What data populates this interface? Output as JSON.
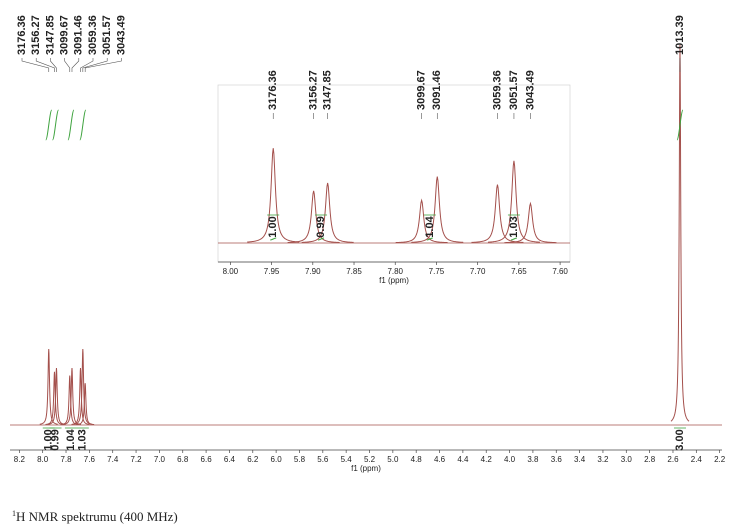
{
  "chart_data": [
    {
      "type": "nmr",
      "xlabel": "f1 (ppm)",
      "color": "#a4504c",
      "integral_color": "#3fa33f",
      "xlim": [
        8.28,
        2.18
      ],
      "xticks": [
        8.2,
        {
          "value": 8,
          "label": "8.0"
        },
        7.8,
        7.6,
        7.4,
        7.2,
        {
          "value": 7,
          "label": "7.0"
        },
        6.8,
        6.6,
        6.4,
        6.2,
        {
          "value": 6,
          "label": "6.0"
        },
        5.8,
        5.6,
        5.4,
        5.2,
        {
          "value": 5,
          "label": "5.0"
        },
        4.8,
        4.6,
        4.4,
        4.2,
        {
          "value": 4,
          "label": "4.0"
        },
        3.8,
        3.6,
        3.4,
        3.2,
        {
          "value": 3,
          "label": "3.0"
        },
        2.8,
        2.6,
        2.4,
        2.2
      ],
      "ylim": [
        0,
        100
      ],
      "x": [
        7.948,
        7.899,
        7.882,
        7.768,
        7.749,
        7.676,
        7.656,
        7.636,
        2.54
      ],
      "values": [
        20,
        14,
        15,
        13,
        15,
        15,
        20,
        11,
        100
      ],
      "peak_labels": [
        3176.36,
        3156.27,
        3147.85,
        3099.67,
        3091.46,
        3059.36,
        3051.57,
        3043.49,
        1013.39
      ],
      "integrals": {
        "x": [
          7.948,
          7.89,
          7.758,
          7.656,
          2.54
        ],
        "values": [
          1,
          0.99,
          1.04,
          1.03,
          3
        ],
        "value_labels": [
          "1.00",
          "0.99",
          "1.04",
          "1.03",
          "3.00"
        ]
      }
    },
    {
      "type": "nmr",
      "xlabel": "f1 (ppm)",
      "color": "#a4504c",
      "integral_color": "#3fa33f",
      "xlim": [
        8.015,
        7.588
      ],
      "xticks": [
        {
          "value": 8,
          "label": "8.00"
        },
        7.95,
        {
          "value": 7.9,
          "label": "7.90"
        },
        7.85,
        {
          "value": 7.8,
          "label": "7.80"
        },
        7.75,
        {
          "value": 7.7,
          "label": "7.70"
        },
        7.65,
        {
          "value": 7.6,
          "label": "7.60"
        }
      ],
      "ylim": [
        0,
        100
      ],
      "x": [
        7.948,
        7.899,
        7.882,
        7.768,
        7.749,
        7.676,
        7.656,
        7.636
      ],
      "values": [
        60,
        33,
        38,
        27,
        42,
        37,
        52,
        25
      ],
      "peak_labels": [
        3176.36,
        3156.27,
        3147.85,
        3099.67,
        3091.46,
        3059.36,
        3051.57,
        3043.49
      ],
      "integrals": {
        "x": [
          7.948,
          7.89,
          7.758,
          7.656
        ],
        "values": [
          1,
          0.99,
          1.04,
          1.03
        ],
        "value_labels": [
          "1.00",
          "0.99",
          "1.04",
          "1.03"
        ]
      }
    }
  ],
  "caption": {
    "sup": "1",
    "text": "H NMR spektrumu (400 MHz)"
  }
}
